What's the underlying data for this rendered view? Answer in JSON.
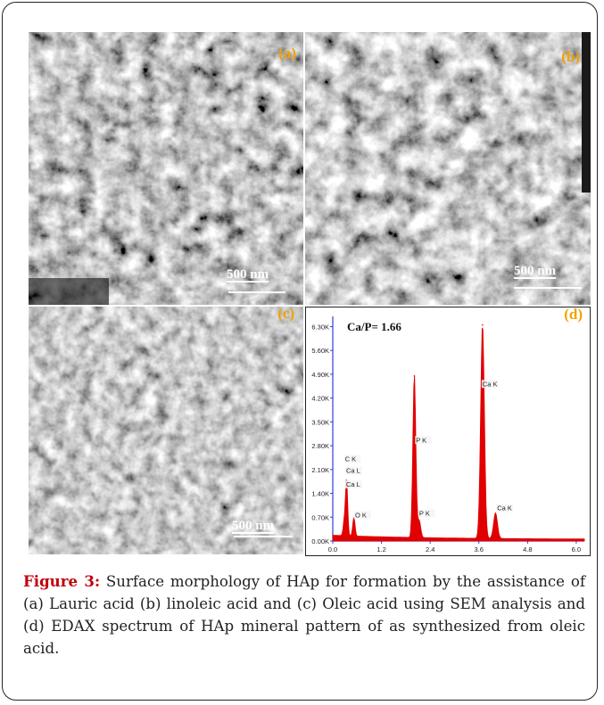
{
  "panels": {
    "a": {
      "label": "(a)",
      "scalebar": "500 nm"
    },
    "b": {
      "label": "(b)",
      "scalebar": "500 nm"
    },
    "c": {
      "label": "(c)",
      "scalebar": "500 nm"
    },
    "d": {
      "label": "(d)"
    }
  },
  "chart_data": {
    "type": "line",
    "title": "",
    "annotation": "Ca/P= 1.66",
    "xlabel": "",
    "ylabel": "",
    "xlim": [
      0.0,
      6.2
    ],
    "ylim": [
      0,
      6.6
    ],
    "x_ticks": [
      "0.0",
      "1.2",
      "2.4",
      "3.6",
      "4.8",
      "6.0"
    ],
    "y_ticks": [
      "0.00K",
      "0.70K",
      "1.40K",
      "2.10K",
      "2.80K",
      "3.50K",
      "4.20K",
      "4.90K",
      "5.60K",
      "6.30K"
    ],
    "series": [
      {
        "color": "#e10000",
        "peaks": [
          {
            "x": 0.28,
            "y": 0.45
          },
          {
            "x": 0.52,
            "y": 0.6
          },
          {
            "x": 0.34,
            "y": 1.75
          },
          {
            "x": 2.01,
            "y": 4.85
          },
          {
            "x": 2.13,
            "y": 0.55
          },
          {
            "x": 3.69,
            "y": 6.35
          },
          {
            "x": 4.01,
            "y": 0.8
          }
        ]
      }
    ],
    "peak_labels": [
      {
        "x": 0.3,
        "y": 2.35,
        "text": "C  K"
      },
      {
        "x": 0.33,
        "y": 2.0,
        "text": "Ca L"
      },
      {
        "x": 0.33,
        "y": 1.6,
        "text": "Ca L"
      },
      {
        "x": 0.55,
        "y": 0.7,
        "text": "O  K"
      },
      {
        "x": 2.05,
        "y": 2.9,
        "text": "P  K"
      },
      {
        "x": 2.13,
        "y": 0.75,
        "text": "P  K"
      },
      {
        "x": 3.69,
        "y": 4.55,
        "text": "Ca K"
      },
      {
        "x": 4.05,
        "y": 0.9,
        "text": "Ca K"
      }
    ]
  },
  "caption": {
    "figure_label": "Figure 3:",
    "text": " Surface morphology of HAp for formation by the assistance of (a) Lauric acid (b) linoleic acid and (c) Oleic acid using SEM analysis and (d) EDAX spectrum of HAp mineral pattern of as synthesized from oleic acid."
  },
  "colors": {
    "label_orange": "#f2a100",
    "caption_red": "#c0000a",
    "spectrum_red": "#e10000",
    "axis_blue": "#2f3fd8"
  }
}
